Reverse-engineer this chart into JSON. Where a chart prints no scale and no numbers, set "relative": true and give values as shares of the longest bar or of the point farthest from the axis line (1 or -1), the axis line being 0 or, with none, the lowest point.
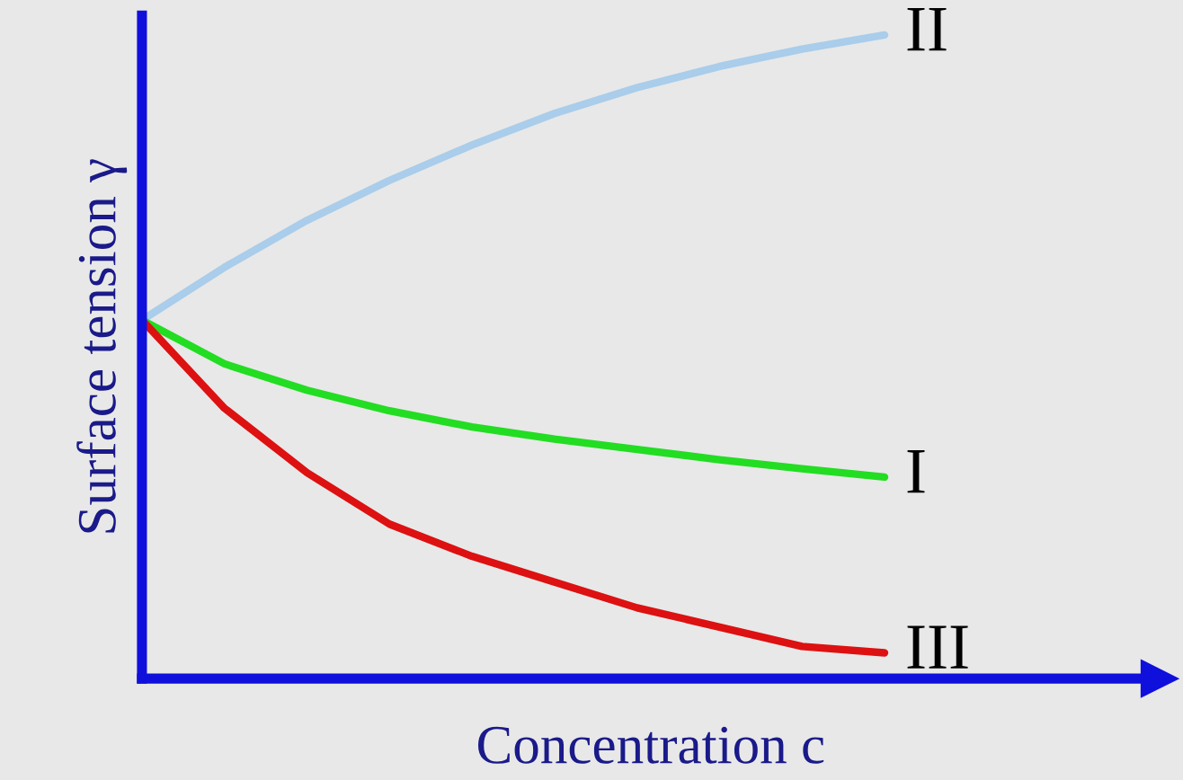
{
  "chart_data": {
    "type": "line",
    "relative": true,
    "xlabel": "Concentration c",
    "ylabel": "Surface tension γ",
    "categories": [
      null,
      null,
      null,
      null,
      null,
      null,
      null,
      null,
      null,
      null
    ],
    "series": [
      {
        "name": "II",
        "color": "#a9cdea",
        "values": [
          0.557,
          0.639,
          0.712,
          0.774,
          0.829,
          0.878,
          0.918,
          0.951,
          0.978,
          1.0
        ]
      },
      {
        "name": "I",
        "color": "#22dd22",
        "values": [
          0.557,
          0.489,
          0.448,
          0.416,
          0.391,
          0.372,
          0.356,
          0.34,
          0.326,
          0.313
        ]
      },
      {
        "name": "III",
        "color": "#dd1111",
        "values": [
          0.557,
          0.42,
          0.32,
          0.24,
          0.19,
          0.15,
          0.11,
          0.08,
          0.05,
          0.04
        ]
      }
    ],
    "marker": "none",
    "line_style": "solid"
  }
}
